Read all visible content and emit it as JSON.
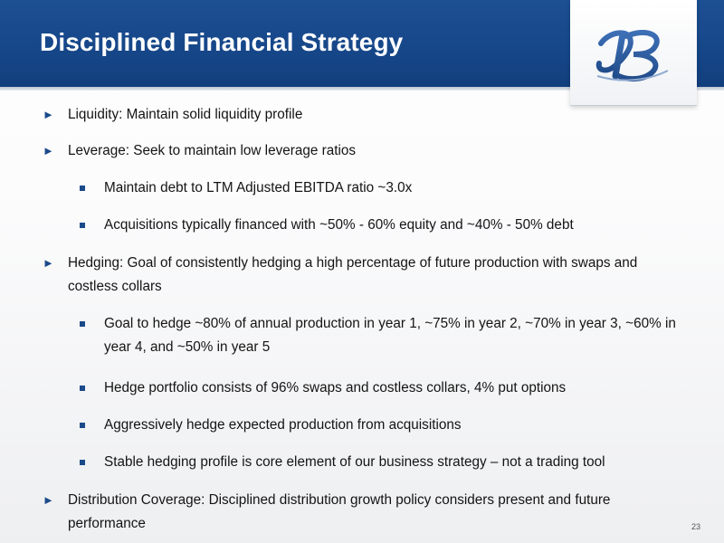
{
  "slide": {
    "title": "Disciplined Financial Strategy",
    "page_number": "23",
    "colors": {
      "header": "#164789",
      "bullet": "#1b4a8a",
      "logo": "#2f5fa3"
    },
    "logo_icon": "monogram-logo",
    "bullets": [
      {
        "level": 1,
        "text": "Liquidity: Maintain solid liquidity profile"
      },
      {
        "level": 1,
        "text": "Leverage: Seek to maintain low leverage ratios"
      },
      {
        "level": 2,
        "text": "Maintain debt to LTM Adjusted EBITDA ratio ~3.0x"
      },
      {
        "level": 2,
        "text": "Acquisitions typically financed with ~50% - 60% equity and ~40% - 50% debt"
      },
      {
        "level": 1,
        "text": "Hedging: Goal of consistently hedging a high percentage of future production with swaps and costless collars"
      },
      {
        "level": 2,
        "text": "Goal to hedge ~80% of annual production in year 1, ~75% in year 2, ~70% in year 3, ~60% in year 4, and ~50% in year 5"
      },
      {
        "level": 2,
        "text": "Hedge portfolio consists of 96% swaps and costless collars, 4% put options"
      },
      {
        "level": 2,
        "text": "Aggressively hedge expected production from acquisitions"
      },
      {
        "level": 2,
        "text": "Stable hedging profile is core element of our business strategy – not a trading tool"
      },
      {
        "level": 1,
        "text": "Distribution Coverage: Disciplined distribution growth policy considers present and future performance"
      }
    ]
  }
}
